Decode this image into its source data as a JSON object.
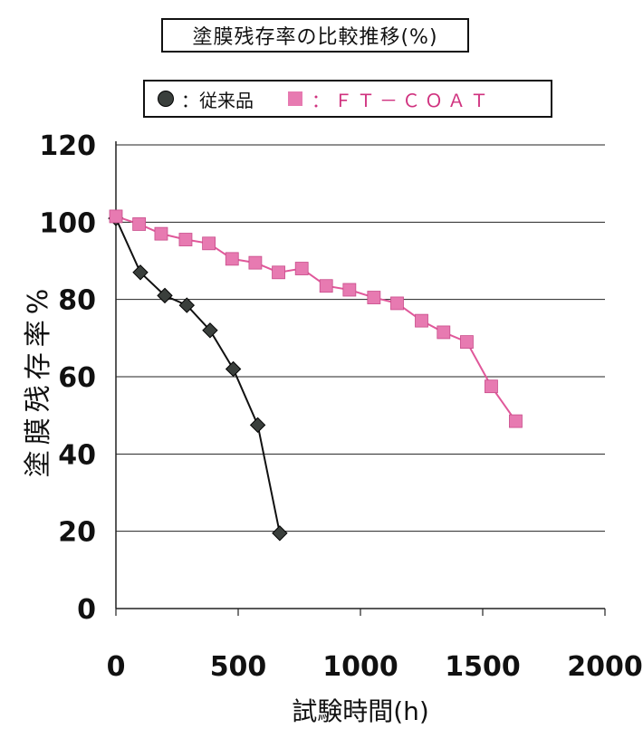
{
  "chart_data": {
    "type": "line",
    "title": "塗膜残存率の比較推移(%)",
    "xlabel": "試験時間(h)",
    "ylabel": "塗膜残存率%",
    "xlim": [
      0,
      2000
    ],
    "ylim": [
      0,
      120
    ],
    "x_ticks": [
      "0",
      "500",
      "1000",
      "1500",
      "2000"
    ],
    "y_ticks": [
      "0",
      "20",
      "40",
      "60",
      "80",
      "100",
      "120"
    ],
    "grid": "horizontal",
    "legend": [
      {
        "label": "：従来品",
        "marker": "circle",
        "color": "#3a3f3c"
      },
      {
        "label": "：ＦＴ－ＣＯＡＴ",
        "marker": "square",
        "color": "#e77ab1"
      }
    ],
    "series": [
      {
        "marker": "diamond",
        "color": "#3a3f3c",
        "line_color": "#111111",
        "points": [
          [
            0,
            101
          ],
          [
            100,
            87
          ],
          [
            200,
            81
          ],
          [
            290,
            78.5
          ],
          [
            385,
            72
          ],
          [
            480,
            62
          ],
          [
            580,
            47.5
          ],
          [
            670,
            19.5
          ]
        ]
      },
      {
        "marker": "square",
        "color": "#e77ab1",
        "line_color": "#e0589a",
        "points": [
          [
            0,
            101.5
          ],
          [
            95,
            99.5
          ],
          [
            185,
            97
          ],
          [
            285,
            95.5
          ],
          [
            380,
            94.5
          ],
          [
            475,
            90.5
          ],
          [
            570,
            89.5
          ],
          [
            665,
            87
          ],
          [
            760,
            88
          ],
          [
            860,
            83.5
          ],
          [
            955,
            82.5
          ],
          [
            1055,
            80.5
          ],
          [
            1150,
            79
          ],
          [
            1250,
            74.5
          ],
          [
            1340,
            71.5
          ],
          [
            1435,
            69
          ],
          [
            1535,
            57.5
          ],
          [
            1635,
            48.5
          ]
        ]
      }
    ]
  }
}
